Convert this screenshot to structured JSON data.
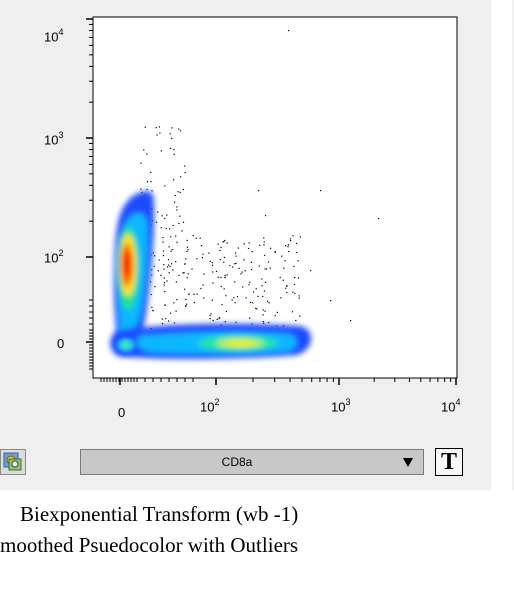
{
  "plot": {
    "y_axis_labels": {
      "t10k": {
        "base": "10",
        "exp": "4"
      },
      "t1k": {
        "base": "10",
        "exp": "3"
      },
      "t100": {
        "base": "10",
        "exp": "2"
      },
      "t0": {
        "base": "0",
        "exp": ""
      }
    },
    "x_axis_labels": {
      "t0": {
        "base": "0",
        "exp": ""
      },
      "t100": {
        "base": "10",
        "exp": "2"
      },
      "t1k": {
        "base": "10",
        "exp": "3"
      },
      "t10k": {
        "base": "10",
        "exp": "4"
      }
    }
  },
  "toolbar": {
    "axis_parameter": "CD8a",
    "text_button_label": "T",
    "gear_icon": "gear-icon"
  },
  "caption": {
    "line1": "Biexponential Transform (wb -1)",
    "line2": "moothed Psuedocolor with Outliers"
  },
  "colors": {
    "panel_bg": "#efefef",
    "density_low": "#1e3cff",
    "density_high": "#ff1a00"
  }
}
